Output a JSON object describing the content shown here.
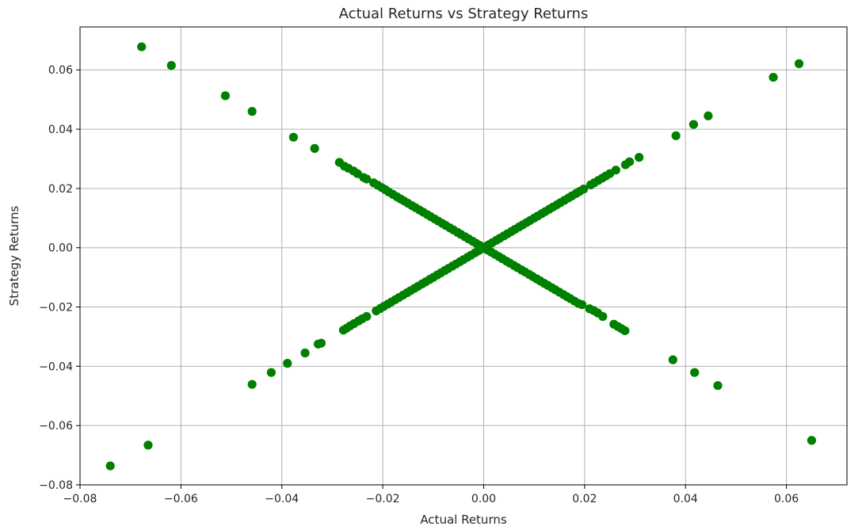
{
  "chart_data": {
    "type": "scatter",
    "title": "Actual Returns vs Strategy Returns",
    "xlabel": "Actual Returns",
    "ylabel": "Strategy Returns",
    "xlim": [
      -0.08,
      0.072
    ],
    "ylim": [
      -0.08,
      0.0745
    ],
    "xticks": [
      -0.08,
      -0.06,
      -0.04,
      -0.02,
      0.0,
      0.02,
      0.04,
      0.06
    ],
    "xtick_labels": [
      "−0.08",
      "−0.06",
      "−0.04",
      "−0.02",
      "0.00",
      "0.02",
      "0.04",
      "0.06"
    ],
    "yticks": [
      -0.08,
      -0.06,
      -0.04,
      -0.02,
      0.0,
      0.02,
      0.04,
      0.06
    ],
    "ytick_labels": [
      "−0.08",
      "−0.06",
      "−0.04",
      "−0.02",
      "0.00",
      "0.02",
      "0.04",
      "0.06"
    ],
    "grid": true,
    "color": "#008000",
    "series": [
      {
        "points": [
          [
            -0.0678,
            0.0678
          ],
          [
            -0.0619,
            0.0615
          ],
          [
            -0.0512,
            0.0513
          ],
          [
            -0.0459,
            0.046
          ],
          [
            -0.0377,
            0.0373
          ],
          [
            -0.0335,
            0.0335
          ],
          [
            -0.0286,
            0.0288
          ],
          [
            -0.0276,
            0.0275
          ],
          [
            -0.0268,
            0.0268
          ],
          [
            -0.0258,
            0.0259
          ],
          [
            -0.025,
            0.025
          ],
          [
            -0.0238,
            0.0237
          ],
          [
            -0.0232,
            0.0232
          ],
          [
            -0.0218,
            0.0219
          ],
          [
            -0.021,
            0.0211
          ],
          [
            -0.0202,
            0.0203
          ],
          [
            -0.0195,
            0.0196
          ],
          [
            -0.0188,
            0.0188
          ],
          [
            -0.018,
            0.018
          ],
          [
            -0.0172,
            0.0172
          ],
          [
            -0.0165,
            0.0165
          ],
          [
            -0.0158,
            0.0158
          ],
          [
            -0.015,
            0.015
          ],
          [
            -0.0142,
            0.0142
          ],
          [
            -0.0135,
            0.0135
          ],
          [
            -0.0127,
            0.0127
          ],
          [
            -0.012,
            0.012
          ],
          [
            -0.0112,
            0.0112
          ],
          [
            -0.0105,
            0.0105
          ],
          [
            -0.0097,
            0.0097
          ],
          [
            -0.009,
            0.009
          ],
          [
            -0.0082,
            0.0082
          ],
          [
            -0.0075,
            0.0075
          ],
          [
            -0.0067,
            0.0067
          ],
          [
            -0.006,
            0.006
          ],
          [
            -0.0052,
            0.0052
          ],
          [
            -0.0045,
            0.0045
          ],
          [
            -0.0037,
            0.0037
          ],
          [
            -0.003,
            0.003
          ],
          [
            -0.0022,
            0.0022
          ],
          [
            -0.0015,
            0.0015
          ],
          [
            -0.0008,
            0.0008
          ],
          [
            0.0,
            0.0
          ],
          [
            0.0008,
            -0.0008
          ],
          [
            0.0015,
            -0.0015
          ],
          [
            0.0022,
            -0.0022
          ],
          [
            0.003,
            -0.003
          ],
          [
            0.0037,
            -0.0037
          ],
          [
            0.0045,
            -0.0045
          ],
          [
            0.0052,
            -0.0052
          ],
          [
            0.006,
            -0.006
          ],
          [
            0.0067,
            -0.0067
          ],
          [
            0.0075,
            -0.0075
          ],
          [
            0.0082,
            -0.0082
          ],
          [
            0.009,
            -0.009
          ],
          [
            0.0097,
            -0.0097
          ],
          [
            0.0105,
            -0.0105
          ],
          [
            0.0112,
            -0.0112
          ],
          [
            0.012,
            -0.012
          ],
          [
            0.0127,
            -0.0127
          ],
          [
            0.0135,
            -0.0135
          ],
          [
            0.0142,
            -0.0142
          ],
          [
            0.015,
            -0.015
          ],
          [
            0.0158,
            -0.0158
          ],
          [
            0.0165,
            -0.0165
          ],
          [
            0.0172,
            -0.0172
          ],
          [
            0.018,
            -0.018
          ],
          [
            0.0188,
            -0.0188
          ],
          [
            0.0195,
            -0.0192
          ],
          [
            0.021,
            -0.0206
          ],
          [
            0.0218,
            -0.0212
          ],
          [
            0.0226,
            -0.022
          ],
          [
            0.0236,
            -0.0232
          ],
          [
            0.0258,
            -0.0258
          ],
          [
            0.0266,
            -0.0266
          ],
          [
            0.0273,
            -0.0273
          ],
          [
            0.028,
            -0.028
          ],
          [
            0.0375,
            -0.0378
          ],
          [
            0.0418,
            -0.0421
          ],
          [
            0.0464,
            -0.0465
          ],
          [
            0.065,
            -0.065
          ],
          [
            -0.074,
            -0.0736
          ],
          [
            -0.0665,
            -0.0666
          ],
          [
            -0.0459,
            -0.0461
          ],
          [
            -0.0421,
            -0.0421
          ],
          [
            -0.0389,
            -0.039
          ],
          [
            -0.0354,
            -0.0355
          ],
          [
            -0.0328,
            -0.0325
          ],
          [
            -0.0322,
            -0.0322
          ],
          [
            -0.0278,
            -0.0278
          ],
          [
            -0.0272,
            -0.0272
          ],
          [
            -0.0265,
            -0.0264
          ],
          [
            -0.0257,
            -0.0256
          ],
          [
            -0.0248,
            -0.0247
          ],
          [
            -0.0241,
            -0.024
          ],
          [
            -0.0232,
            -0.0232
          ],
          [
            -0.0213,
            -0.0213
          ],
          [
            -0.0205,
            -0.0205
          ],
          [
            -0.0198,
            -0.0198
          ],
          [
            -0.019,
            -0.019
          ],
          [
            -0.0183,
            -0.0183
          ],
          [
            -0.0175,
            -0.0175
          ],
          [
            -0.0168,
            -0.0168
          ],
          [
            -0.016,
            -0.016
          ],
          [
            -0.0152,
            -0.0152
          ],
          [
            -0.0145,
            -0.0145
          ],
          [
            -0.0137,
            -0.0137
          ],
          [
            -0.013,
            -0.013
          ],
          [
            -0.0122,
            -0.0122
          ],
          [
            -0.0115,
            -0.0115
          ],
          [
            -0.0107,
            -0.0107
          ],
          [
            -0.01,
            -0.01
          ],
          [
            -0.0092,
            -0.0092
          ],
          [
            -0.0085,
            -0.0085
          ],
          [
            -0.0077,
            -0.0077
          ],
          [
            -0.007,
            -0.007
          ],
          [
            -0.0062,
            -0.0062
          ],
          [
            -0.0055,
            -0.0055
          ],
          [
            -0.0047,
            -0.0047
          ],
          [
            -0.004,
            -0.004
          ],
          [
            -0.0032,
            -0.0032
          ],
          [
            -0.0025,
            -0.0025
          ],
          [
            -0.0017,
            -0.0017
          ],
          [
            -0.001,
            -0.001
          ],
          [
            -0.0004,
            -0.0004
          ],
          [
            0.0004,
            0.0004
          ],
          [
            0.001,
            0.001
          ],
          [
            0.0017,
            0.0017
          ],
          [
            0.0025,
            0.0025
          ],
          [
            0.0032,
            0.0032
          ],
          [
            0.004,
            0.004
          ],
          [
            0.0047,
            0.0047
          ],
          [
            0.0055,
            0.0055
          ],
          [
            0.0062,
            0.0062
          ],
          [
            0.007,
            0.007
          ],
          [
            0.0077,
            0.0077
          ],
          [
            0.0085,
            0.0085
          ],
          [
            0.0092,
            0.0092
          ],
          [
            0.01,
            0.01
          ],
          [
            0.0107,
            0.0107
          ],
          [
            0.0115,
            0.0115
          ],
          [
            0.0122,
            0.0122
          ],
          [
            0.013,
            0.013
          ],
          [
            0.0137,
            0.0137
          ],
          [
            0.0145,
            0.0145
          ],
          [
            0.0152,
            0.0152
          ],
          [
            0.016,
            0.016
          ],
          [
            0.0168,
            0.0168
          ],
          [
            0.0175,
            0.0175
          ],
          [
            0.0183,
            0.0183
          ],
          [
            0.019,
            0.019
          ],
          [
            0.0198,
            0.0198
          ],
          [
            0.0212,
            0.0212
          ],
          [
            0.0219,
            0.0219
          ],
          [
            0.0227,
            0.0227
          ],
          [
            0.0235,
            0.0235
          ],
          [
            0.0242,
            0.0242
          ],
          [
            0.025,
            0.025
          ],
          [
            0.0262,
            0.0262
          ],
          [
            0.0281,
            0.028
          ],
          [
            0.0289,
            0.029
          ],
          [
            0.0308,
            0.0305
          ],
          [
            0.0381,
            0.0378
          ],
          [
            0.0416,
            0.0416
          ],
          [
            0.0445,
            0.0445
          ],
          [
            0.0574,
            0.0575
          ],
          [
            0.0625,
            0.0621
          ]
        ]
      }
    ]
  }
}
